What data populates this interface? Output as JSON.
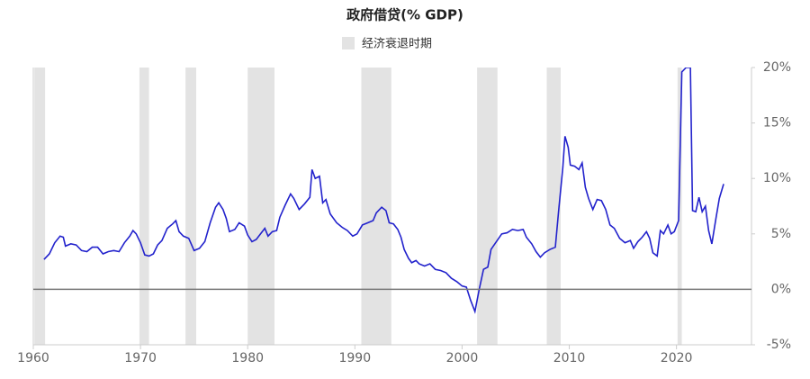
{
  "chart_data": {
    "type": "line",
    "title": "政府借贷(% GDP)",
    "recession_label": "经济衰退时期",
    "recession_color": "#e3e3e3",
    "recessions": [
      [
        1960.1,
        1961.1
      ],
      [
        1969.9,
        1970.8
      ],
      [
        1974.2,
        1975.2
      ],
      [
        1980.0,
        1982.5
      ],
      [
        1990.6,
        1993.4
      ],
      [
        2001.4,
        2003.3
      ],
      [
        2007.9,
        2009.2
      ],
      [
        2020.1,
        2020.5
      ]
    ],
    "xlim": [
      1960,
      2027
    ],
    "xticks": [
      1960,
      1970,
      1980,
      1990,
      2000,
      2010,
      2020
    ],
    "ylim": [
      -5,
      20
    ],
    "yticks": [
      {
        "value": -5,
        "label": "-5%"
      },
      {
        "value": 0,
        "label": "0%"
      },
      {
        "value": 5,
        "label": "5%"
      },
      {
        "value": 10,
        "label": "10%"
      },
      {
        "value": 15,
        "label": "15%"
      },
      {
        "value": 20,
        "label": "20%"
      }
    ],
    "x": [
      1961.0,
      1961.5,
      1962.0,
      1962.5,
      1962.8,
      1963.0,
      1963.5,
      1964.0,
      1964.5,
      1965.0,
      1965.5,
      1966.0,
      1966.5,
      1967.0,
      1967.5,
      1968.0,
      1968.5,
      1969.0,
      1969.3,
      1969.6,
      1970.0,
      1970.4,
      1970.8,
      1971.2,
      1971.6,
      1972.0,
      1972.5,
      1973.0,
      1973.3,
      1973.6,
      1974.0,
      1974.5,
      1975.0,
      1975.5,
      1976.0,
      1976.5,
      1977.0,
      1977.3,
      1977.7,
      1978.0,
      1978.3,
      1978.8,
      1979.2,
      1979.7,
      1980.0,
      1980.4,
      1980.8,
      1981.2,
      1981.6,
      1981.9,
      1982.3,
      1982.7,
      1983.0,
      1983.5,
      1984.0,
      1984.3,
      1984.8,
      1985.3,
      1985.8,
      1986.0,
      1986.3,
      1986.7,
      1987.0,
      1987.3,
      1987.7,
      1988.3,
      1988.8,
      1989.3,
      1989.8,
      1990.2,
      1990.7,
      1991.2,
      1991.7,
      1992.0,
      1992.5,
      1992.9,
      1993.2,
      1993.6,
      1994.0,
      1994.3,
      1994.6,
      1995.0,
      1995.3,
      1995.7,
      1996.0,
      1996.5,
      1997.0,
      1997.5,
      1998.0,
      1998.5,
      1999.0,
      1999.5,
      2000.0,
      2000.4,
      2000.8,
      2001.2,
      2001.6,
      2002.0,
      2002.4,
      2002.7,
      2003.2,
      2003.7,
      2004.2,
      2004.7,
      2005.2,
      2005.7,
      2006.0,
      2006.5,
      2006.9,
      2007.3,
      2007.7,
      2008.2,
      2008.7,
      2009.0,
      2009.4,
      2009.6,
      2009.9,
      2010.1,
      2010.5,
      2010.9,
      2011.2,
      2011.5,
      2011.8,
      2012.2,
      2012.6,
      2013.0,
      2013.4,
      2013.8,
      2014.2,
      2014.7,
      2015.2,
      2015.7,
      2016.0,
      2016.4,
      2016.8,
      2017.2,
      2017.5,
      2017.8,
      2018.2,
      2018.5,
      2018.8,
      2019.2,
      2019.5,
      2019.8,
      2020.2,
      2020.5,
      2020.9,
      2021.3,
      2021.5,
      2021.8,
      2022.1,
      2022.4,
      2022.7,
      2023.0,
      2023.3,
      2023.7,
      2024.0,
      2024.4
    ],
    "series": [
      {
        "name": "政府借贷",
        "color": "#2222cc",
        "values": [
          2.7,
          3.2,
          4.2,
          4.8,
          4.7,
          3.9,
          4.1,
          4.0,
          3.5,
          3.4,
          3.8,
          3.8,
          3.2,
          3.4,
          3.5,
          3.4,
          4.2,
          4.8,
          5.3,
          5.0,
          4.2,
          3.1,
          3.0,
          3.2,
          4.0,
          4.4,
          5.5,
          5.9,
          6.2,
          5.2,
          4.8,
          4.6,
          3.5,
          3.7,
          4.3,
          6.0,
          7.4,
          7.8,
          7.2,
          6.4,
          5.2,
          5.4,
          6.0,
          5.7,
          4.9,
          4.3,
          4.5,
          5.0,
          5.5,
          4.8,
          5.2,
          5.3,
          6.5,
          7.6,
          8.6,
          8.2,
          7.2,
          7.7,
          8.3,
          10.8,
          10.0,
          10.2,
          7.8,
          8.1,
          6.8,
          6.0,
          5.6,
          5.3,
          4.8,
          5.0,
          5.8,
          6.0,
          6.2,
          6.9,
          7.4,
          7.1,
          6.0,
          5.9,
          5.4,
          4.7,
          3.6,
          2.8,
          2.4,
          2.6,
          2.3,
          2.1,
          2.3,
          1.8,
          1.7,
          1.5,
          1.0,
          0.7,
          0.3,
          0.2,
          -1.0,
          -2.0,
          0.0,
          1.8,
          2.0,
          3.6,
          4.3,
          5.0,
          5.1,
          5.4,
          5.3,
          5.4,
          4.7,
          4.1,
          3.4,
          2.9,
          3.3,
          3.6,
          3.8,
          7.0,
          11.0,
          13.8,
          12.8,
          11.2,
          11.1,
          10.8,
          11.4,
          9.2,
          8.2,
          7.2,
          8.1,
          8.0,
          7.2,
          5.8,
          5.5,
          4.6,
          4.2,
          4.4,
          3.7,
          4.3,
          4.7,
          5.2,
          4.6,
          3.3,
          3.0,
          5.3,
          5.0,
          5.8,
          5.0,
          5.2,
          6.2,
          19.6,
          20.0,
          20.0,
          7.1,
          7.0,
          8.3,
          7.0,
          7.5,
          5.3,
          4.1,
          6.5,
          8.2,
          9.5
        ]
      }
    ]
  }
}
